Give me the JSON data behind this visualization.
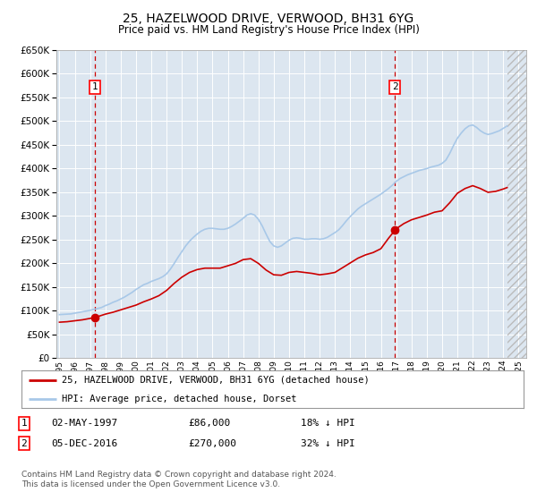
{
  "title": "25, HAZELWOOD DRIVE, VERWOOD, BH31 6YG",
  "subtitle": "Price paid vs. HM Land Registry's House Price Index (HPI)",
  "ylim": [
    0,
    650000
  ],
  "ytick_values": [
    0,
    50000,
    100000,
    150000,
    200000,
    250000,
    300000,
    350000,
    400000,
    450000,
    500000,
    550000,
    600000,
    650000
  ],
  "xlim_start": 1994.8,
  "xlim_end": 2025.5,
  "plot_bg_color": "#dce6f0",
  "outer_bg_color": "#ffffff",
  "hpi_color": "#a8c8e8",
  "price_color": "#cc0000",
  "marker1_year": 1997.33,
  "marker1_price": 86000,
  "marker2_year": 2016.92,
  "marker2_price": 270000,
  "legend_label1": "25, HAZELWOOD DRIVE, VERWOOD, BH31 6YG (detached house)",
  "legend_label2": "HPI: Average price, detached house, Dorset",
  "annotation1_date": "02-MAY-1997",
  "annotation1_price": "£86,000",
  "annotation1_hpi": "18% ↓ HPI",
  "annotation2_date": "05-DEC-2016",
  "annotation2_price": "£270,000",
  "annotation2_hpi": "32% ↓ HPI",
  "footnote": "Contains HM Land Registry data © Crown copyright and database right 2024.\nThis data is licensed under the Open Government Licence v3.0.",
  "hpi_data_years": [
    1995.0,
    1995.25,
    1995.5,
    1995.75,
    1996.0,
    1996.25,
    1996.5,
    1996.75,
    1997.0,
    1997.25,
    1997.5,
    1997.75,
    1998.0,
    1998.25,
    1998.5,
    1998.75,
    1999.0,
    1999.25,
    1999.5,
    1999.75,
    2000.0,
    2000.25,
    2000.5,
    2000.75,
    2001.0,
    2001.25,
    2001.5,
    2001.75,
    2002.0,
    2002.25,
    2002.5,
    2002.75,
    2003.0,
    2003.25,
    2003.5,
    2003.75,
    2004.0,
    2004.25,
    2004.5,
    2004.75,
    2005.0,
    2005.25,
    2005.5,
    2005.75,
    2006.0,
    2006.25,
    2006.5,
    2006.75,
    2007.0,
    2007.25,
    2007.5,
    2007.75,
    2008.0,
    2008.25,
    2008.5,
    2008.75,
    2009.0,
    2009.25,
    2009.5,
    2009.75,
    2010.0,
    2010.25,
    2010.5,
    2010.75,
    2011.0,
    2011.25,
    2011.5,
    2011.75,
    2012.0,
    2012.25,
    2012.5,
    2012.75,
    2013.0,
    2013.25,
    2013.5,
    2013.75,
    2014.0,
    2014.25,
    2014.5,
    2014.75,
    2015.0,
    2015.25,
    2015.5,
    2015.75,
    2016.0,
    2016.25,
    2016.5,
    2016.75,
    2017.0,
    2017.25,
    2017.5,
    2017.75,
    2018.0,
    2018.25,
    2018.5,
    2018.75,
    2019.0,
    2019.25,
    2019.5,
    2019.75,
    2020.0,
    2020.25,
    2020.5,
    2020.75,
    2021.0,
    2021.25,
    2021.5,
    2021.75,
    2022.0,
    2022.25,
    2022.5,
    2022.75,
    2023.0,
    2023.25,
    2023.5,
    2023.75,
    2024.0,
    2024.25
  ],
  "hpi_data_values": [
    92000,
    92500,
    93000,
    93500,
    95000,
    96500,
    98000,
    99500,
    101000,
    103000,
    105000,
    107000,
    111000,
    114000,
    118000,
    121000,
    125000,
    129000,
    134000,
    139000,
    145000,
    150000,
    155000,
    158000,
    162000,
    165000,
    168000,
    172000,
    178000,
    188000,
    200000,
    213000,
    225000,
    237000,
    247000,
    255000,
    262000,
    268000,
    272000,
    274000,
    274000,
    273000,
    272000,
    272000,
    274000,
    278000,
    283000,
    289000,
    295000,
    302000,
    305000,
    302000,
    293000,
    279000,
    262000,
    246000,
    237000,
    234000,
    237000,
    243000,
    249000,
    253000,
    254000,
    253000,
    251000,
    251000,
    252000,
    252000,
    251000,
    252000,
    255000,
    260000,
    265000,
    271000,
    280000,
    290000,
    299000,
    307000,
    315000,
    321000,
    326000,
    331000,
    336000,
    341000,
    346000,
    352000,
    358000,
    365000,
    373000,
    379000,
    383000,
    387000,
    390000,
    393000,
    396000,
    398000,
    400000,
    403000,
    405000,
    407000,
    411000,
    418000,
    432000,
    449000,
    464000,
    475000,
    484000,
    490000,
    492000,
    487000,
    480000,
    475000,
    472000,
    474000,
    477000,
    480000,
    485000,
    490000
  ],
  "price_data_years": [
    1995.0,
    1995.5,
    1996.0,
    1996.5,
    1997.0,
    1997.33,
    1998.0,
    1998.5,
    1999.0,
    1999.5,
    2000.0,
    2000.5,
    2001.0,
    2001.5,
    2002.0,
    2002.5,
    2003.0,
    2003.5,
    2004.0,
    2004.5,
    2005.0,
    2005.5,
    2006.0,
    2006.5,
    2007.0,
    2007.5,
    2008.0,
    2008.5,
    2009.0,
    2009.5,
    2010.0,
    2010.5,
    2011.0,
    2011.5,
    2012.0,
    2012.5,
    2013.0,
    2013.5,
    2014.0,
    2014.5,
    2015.0,
    2015.5,
    2016.0,
    2016.5,
    2016.92,
    2017.0,
    2017.5,
    2018.0,
    2018.5,
    2019.0,
    2019.5,
    2020.0,
    2020.5,
    2021.0,
    2021.5,
    2022.0,
    2022.5,
    2023.0,
    2023.5,
    2024.0,
    2024.25
  ],
  "price_data_values": [
    76000,
    77000,
    79000,
    81000,
    84000,
    86000,
    93000,
    97000,
    102000,
    107000,
    112000,
    119000,
    125000,
    132000,
    143000,
    158000,
    171000,
    181000,
    187000,
    190000,
    190000,
    190000,
    195000,
    200000,
    208000,
    210000,
    200000,
    186000,
    176000,
    175000,
    181000,
    183000,
    181000,
    179000,
    176000,
    178000,
    181000,
    191000,
    201000,
    211000,
    218000,
    223000,
    231000,
    253000,
    270000,
    273000,
    284000,
    292000,
    297000,
    302000,
    308000,
    311000,
    328000,
    348000,
    358000,
    364000,
    358000,
    350000,
    352000,
    357000,
    360000
  ]
}
